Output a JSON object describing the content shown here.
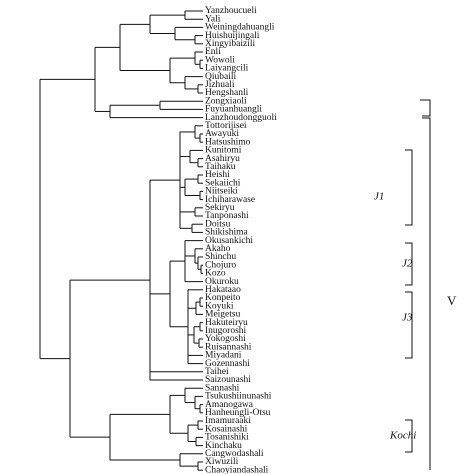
{
  "leaves": [
    "Yanzhoucueli",
    "Yali",
    "Weiningdahuangli",
    "Huishuijingali",
    "Xingyibaizili",
    "Enli",
    "Wowoli",
    "Laiyangcili",
    "Qiubaili",
    "Jizhuali",
    "Hengshanli",
    "Zongxiaoli",
    "Fuyuanhuangli",
    "Lanzhoudongguoli",
    "Tottorijisei",
    "Awayuki",
    "Hatsushimo",
    "Kunitomi",
    "Asahiryu",
    "Taihaku",
    "Heishi",
    "Sekaiichi",
    "Niitseiki",
    "Ichiharawase",
    "Sekiryu",
    "Tanponashi",
    "Doitsu",
    "Shikishima",
    "Okusankichi",
    "Akaho",
    "Shinchu",
    "Chojuro",
    "Kozo",
    "Okuroku",
    "Hakataao",
    "Konpeito",
    "Koyuki",
    "Meigetsu",
    "Hakuteiryu",
    "Inugoroshi",
    "Yokogoshi",
    "Ruisannashi",
    "Miyadani",
    "Gozennashi",
    "Taihei",
    "Saizounashi",
    "Sannashi",
    "Tsukushiinunashi",
    "Amanogawa",
    "Hanheungli-Otsu",
    "Imamuraaki",
    "Kosainashi",
    "Tosanishiki",
    "Kinchaku",
    "Cangwodashali",
    "Xiwuzili",
    "Chaoyiandashali"
  ],
  "annotations": {
    "j1": "J1",
    "j2": "J2",
    "j3": "J3",
    "kochi": "Kochi",
    "v": "V"
  }
}
